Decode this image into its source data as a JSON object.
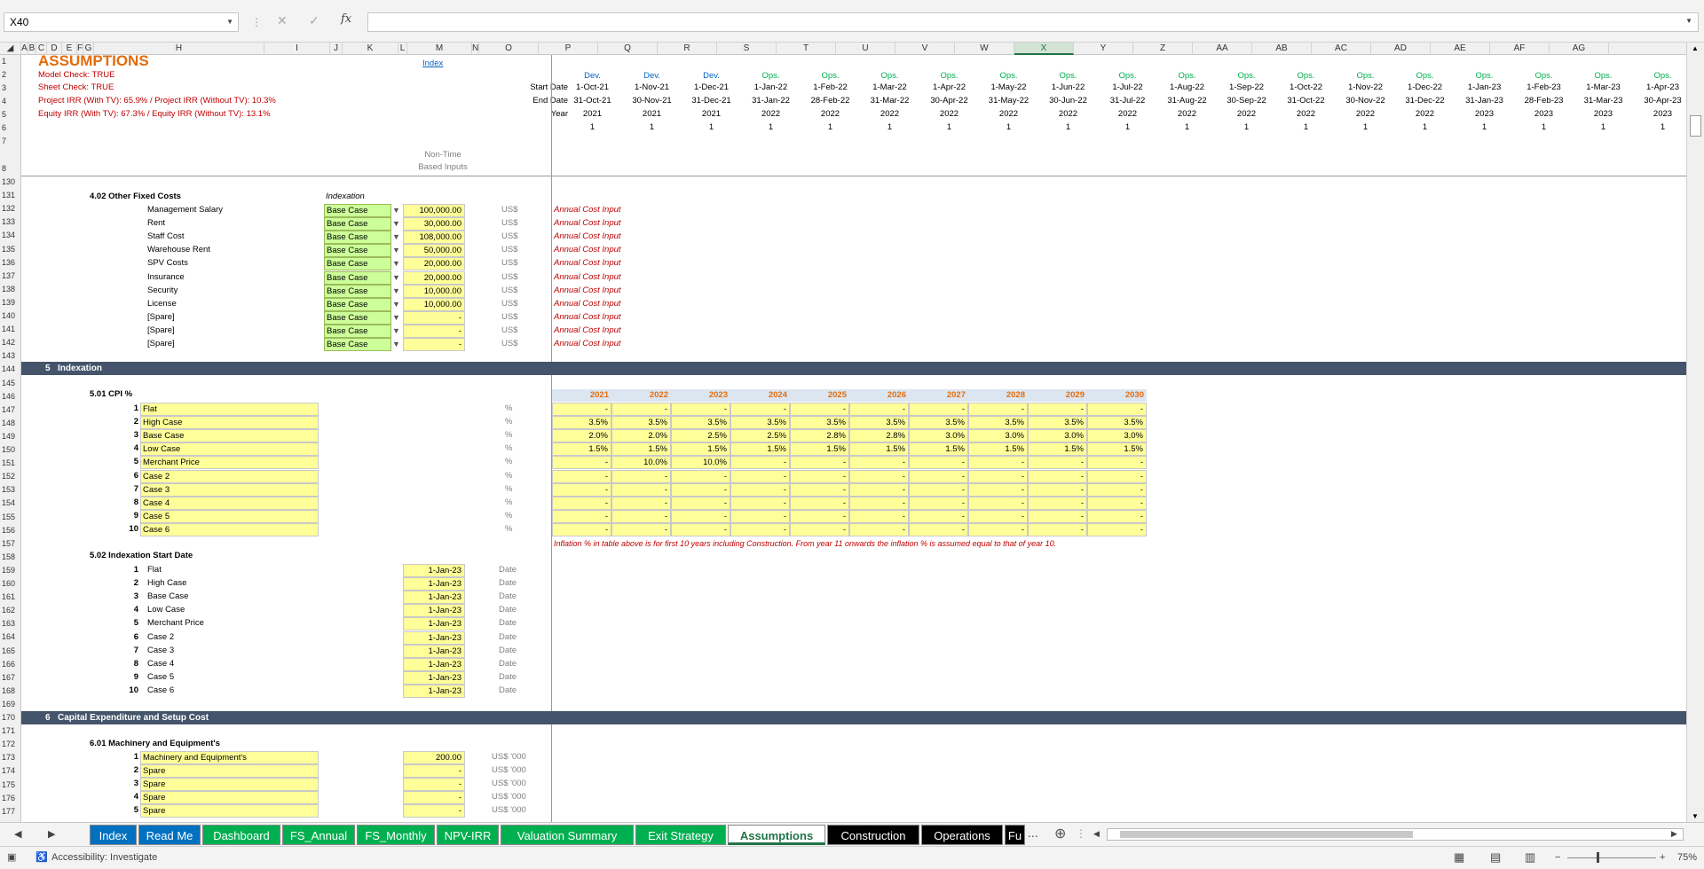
{
  "formula_bar": {
    "cell_ref": "X40",
    "fx_label": "fx",
    "cancel_glyph": "✕",
    "enter_glyph": "✓",
    "formula": ""
  },
  "columns": [
    "A",
    "B",
    "C",
    "D",
    "E",
    "F",
    "G",
    "H",
    "I",
    "J",
    "K",
    "L",
    "M",
    "N",
    "O",
    "P",
    "Q",
    "R",
    "S",
    "T",
    "U",
    "V",
    "W",
    "X",
    "Y",
    "Z",
    "AA",
    "AB",
    "AC",
    "AD",
    "AE",
    "AF",
    "AG"
  ],
  "selected_column": "X",
  "header": {
    "title": "ASSUMPTIONS",
    "index_link": "Index",
    "model_check": "Model Check: TRUE",
    "sheet_check": "Sheet Check: TRUE",
    "project_irr": "Project IRR (With TV): 65.9% / Project IRR (Without TV): 10.3%",
    "equity_irr": "Equity IRR (With TV): 67.3% / Equity IRR (Without TV): 13.1%",
    "non_time_1": "Non-Time",
    "non_time_2": "Based Inputs",
    "start_date_label": "Start Date",
    "end_date_label": "End Date",
    "year_label": "Year"
  },
  "timeline": [
    {
      "phase": "Dev.",
      "start": "1-Oct-21",
      "end": "31-Oct-21",
      "year": "2021",
      "flag": "1"
    },
    {
      "phase": "Dev.",
      "start": "1-Nov-21",
      "end": "30-Nov-21",
      "year": "2021",
      "flag": "1"
    },
    {
      "phase": "Dev.",
      "start": "1-Dec-21",
      "end": "31-Dec-21",
      "year": "2021",
      "flag": "1"
    },
    {
      "phase": "Ops.",
      "start": "1-Jan-22",
      "end": "31-Jan-22",
      "year": "2022",
      "flag": "1"
    },
    {
      "phase": "Ops.",
      "start": "1-Feb-22",
      "end": "28-Feb-22",
      "year": "2022",
      "flag": "1"
    },
    {
      "phase": "Ops.",
      "start": "1-Mar-22",
      "end": "31-Mar-22",
      "year": "2022",
      "flag": "1"
    },
    {
      "phase": "Ops.",
      "start": "1-Apr-22",
      "end": "30-Apr-22",
      "year": "2022",
      "flag": "1"
    },
    {
      "phase": "Ops.",
      "start": "1-May-22",
      "end": "31-May-22",
      "year": "2022",
      "flag": "1"
    },
    {
      "phase": "Ops.",
      "start": "1-Jun-22",
      "end": "30-Jun-22",
      "year": "2022",
      "flag": "1"
    },
    {
      "phase": "Ops.",
      "start": "1-Jul-22",
      "end": "31-Jul-22",
      "year": "2022",
      "flag": "1"
    },
    {
      "phase": "Ops.",
      "start": "1-Aug-22",
      "end": "31-Aug-22",
      "year": "2022",
      "flag": "1"
    },
    {
      "phase": "Ops.",
      "start": "1-Sep-22",
      "end": "30-Sep-22",
      "year": "2022",
      "flag": "1"
    },
    {
      "phase": "Ops.",
      "start": "1-Oct-22",
      "end": "31-Oct-22",
      "year": "2022",
      "flag": "1"
    },
    {
      "phase": "Ops.",
      "start": "1-Nov-22",
      "end": "30-Nov-22",
      "year": "2022",
      "flag": "1"
    },
    {
      "phase": "Ops.",
      "start": "1-Dec-22",
      "end": "31-Dec-22",
      "year": "2022",
      "flag": "1"
    },
    {
      "phase": "Ops.",
      "start": "1-Jan-23",
      "end": "31-Jan-23",
      "year": "2023",
      "flag": "1"
    },
    {
      "phase": "Ops.",
      "start": "1-Feb-23",
      "end": "28-Feb-23",
      "year": "2023",
      "flag": "1"
    },
    {
      "phase": "Ops.",
      "start": "1-Mar-23",
      "end": "31-Mar-23",
      "year": "2023",
      "flag": "1"
    },
    {
      "phase": "Ops.",
      "start": "1-Apr-23",
      "end": "30-Apr-23",
      "year": "2023",
      "flag": "1"
    }
  ],
  "fixed_costs": {
    "heading": "4.02  Other Fixed Costs",
    "indexation_label": "Indexation",
    "rows": [
      {
        "name": "Management Salary",
        "index": "Base Case",
        "value": "100,000.00",
        "unit": "US$",
        "note": "Annual Cost Input"
      },
      {
        "name": "Rent",
        "index": "Base Case",
        "value": "30,000.00",
        "unit": "US$",
        "note": "Annual Cost Input"
      },
      {
        "name": "Staff Cost",
        "index": "Base Case",
        "value": "108,000.00",
        "unit": "US$",
        "note": "Annual Cost Input"
      },
      {
        "name": "Warehouse Rent",
        "index": "Base Case",
        "value": "50,000.00",
        "unit": "US$",
        "note": "Annual Cost Input"
      },
      {
        "name": "SPV Costs",
        "index": "Base Case",
        "value": "20,000.00",
        "unit": "US$",
        "note": "Annual Cost Input"
      },
      {
        "name": "Insurance",
        "index": "Base Case",
        "value": "20,000.00",
        "unit": "US$",
        "note": "Annual Cost Input"
      },
      {
        "name": "Security",
        "index": "Base Case",
        "value": "10,000.00",
        "unit": "US$",
        "note": "Annual Cost Input"
      },
      {
        "name": "License",
        "index": "Base Case",
        "value": "10,000.00",
        "unit": "US$",
        "note": "Annual Cost Input"
      },
      {
        "name": "[Spare]",
        "index": "Base Case",
        "value": "-",
        "unit": "US$",
        "note": "Annual Cost Input"
      },
      {
        "name": "[Spare]",
        "index": "Base Case",
        "value": "-",
        "unit": "US$",
        "note": "Annual Cost Input"
      },
      {
        "name": "[Spare]",
        "index": "Base Case",
        "value": "-",
        "unit": "US$",
        "note": "Annual Cost Input"
      }
    ]
  },
  "section5": {
    "num": "5",
    "title": "Indexation"
  },
  "cpi": {
    "heading": "5.01  CPI %",
    "years": [
      "2021",
      "2022",
      "2023",
      "2024",
      "2025",
      "2026",
      "2027",
      "2028",
      "2029",
      "2030"
    ],
    "unit": "%",
    "rows": [
      {
        "n": "1",
        "name": "Flat",
        "vals": [
          "-",
          "-",
          "-",
          "-",
          "-",
          "-",
          "-",
          "-",
          "-",
          "-"
        ]
      },
      {
        "n": "2",
        "name": "High Case",
        "vals": [
          "3.5%",
          "3.5%",
          "3.5%",
          "3.5%",
          "3.5%",
          "3.5%",
          "3.5%",
          "3.5%",
          "3.5%",
          "3.5%"
        ]
      },
      {
        "n": "3",
        "name": "Base Case",
        "vals": [
          "2.0%",
          "2.0%",
          "2.5%",
          "2.5%",
          "2.8%",
          "2.8%",
          "3.0%",
          "3.0%",
          "3.0%",
          "3.0%"
        ]
      },
      {
        "n": "4",
        "name": "Low Case",
        "vals": [
          "1.5%",
          "1.5%",
          "1.5%",
          "1.5%",
          "1.5%",
          "1.5%",
          "1.5%",
          "1.5%",
          "1.5%",
          "1.5%"
        ]
      },
      {
        "n": "5",
        "name": "Merchant Price",
        "vals": [
          "-",
          "10.0%",
          "10.0%",
          "-",
          "-",
          "-",
          "-",
          "-",
          "-",
          "-"
        ]
      },
      {
        "n": "6",
        "name": "Case 2",
        "vals": [
          "-",
          "-",
          "-",
          "-",
          "-",
          "-",
          "-",
          "-",
          "-",
          "-"
        ]
      },
      {
        "n": "7",
        "name": "Case 3",
        "vals": [
          "-",
          "-",
          "-",
          "-",
          "-",
          "-",
          "-",
          "-",
          "-",
          "-"
        ]
      },
      {
        "n": "8",
        "name": "Case 4",
        "vals": [
          "-",
          "-",
          "-",
          "-",
          "-",
          "-",
          "-",
          "-",
          "-",
          "-"
        ]
      },
      {
        "n": "9",
        "name": "Case 5",
        "vals": [
          "-",
          "-",
          "-",
          "-",
          "-",
          "-",
          "-",
          "-",
          "-",
          "-"
        ]
      },
      {
        "n": "10",
        "name": "Case 6",
        "vals": [
          "-",
          "-",
          "-",
          "-",
          "-",
          "-",
          "-",
          "-",
          "-",
          "-"
        ]
      }
    ],
    "note": "Inflation % in table above is for first 10 years including Construction. From year 11 onwards the inflation % is assumed equal to that of year 10."
  },
  "index_start": {
    "heading": "5.02  Indexation Start Date",
    "unit": "Date",
    "rows": [
      {
        "n": "1",
        "name": "Flat",
        "date": "1-Jan-23"
      },
      {
        "n": "2",
        "name": "High Case",
        "date": "1-Jan-23"
      },
      {
        "n": "3",
        "name": "Base Case",
        "date": "1-Jan-23"
      },
      {
        "n": "4",
        "name": "Low Case",
        "date": "1-Jan-23"
      },
      {
        "n": "5",
        "name": "Merchant Price",
        "date": "1-Jan-23"
      },
      {
        "n": "6",
        "name": "Case 2",
        "date": "1-Jan-23"
      },
      {
        "n": "7",
        "name": "Case 3",
        "date": "1-Jan-23"
      },
      {
        "n": "8",
        "name": "Case 4",
        "date": "1-Jan-23"
      },
      {
        "n": "9",
        "name": "Case 5",
        "date": "1-Jan-23"
      },
      {
        "n": "10",
        "name": "Case 6",
        "date": "1-Jan-23"
      }
    ]
  },
  "section6": {
    "num": "6",
    "title": "Capital Expenditure and Setup Cost"
  },
  "capex": {
    "heading": "6.01  Machinery and Equipment's",
    "unit": "US$ '000",
    "rows": [
      {
        "n": "1",
        "name": "Machinery and Equipment's",
        "value": "200.00"
      },
      {
        "n": "2",
        "name": "Spare",
        "value": "-"
      },
      {
        "n": "3",
        "name": "Spare",
        "value": "-"
      },
      {
        "n": "4",
        "name": "Spare",
        "value": "-"
      },
      {
        "n": "5",
        "name": "Spare",
        "value": "-"
      }
    ]
  },
  "row_numbers": [
    "1",
    "2",
    "3",
    "4",
    "5",
    "6",
    "7",
    "8",
    "130",
    "131",
    "132",
    "133",
    "134",
    "135",
    "136",
    "137",
    "138",
    "139",
    "140",
    "141",
    "142",
    "143",
    "144",
    "145",
    "146",
    "147",
    "148",
    "149",
    "150",
    "151",
    "152",
    "153",
    "154",
    "155",
    "156",
    "157",
    "158",
    "159",
    "160",
    "161",
    "162",
    "163",
    "164",
    "165",
    "166",
    "167",
    "168",
    "169",
    "170",
    "171",
    "172",
    "173",
    "174",
    "175",
    "176",
    "177"
  ],
  "tabs": [
    {
      "label": "Index",
      "bg": "#0070c0"
    },
    {
      "label": "Read Me",
      "bg": "#0070c0"
    },
    {
      "label": "Dashboard",
      "bg": "#00b050"
    },
    {
      "label": "FS_Annual",
      "bg": "#00b050"
    },
    {
      "label": "FS_Monthly",
      "bg": "#00b050"
    },
    {
      "label": "NPV-IRR",
      "bg": "#00b050"
    },
    {
      "label": "Valuation Summary",
      "bg": "#00b050"
    },
    {
      "label": "Exit Strategy",
      "bg": "#00b050"
    },
    {
      "label": "Assumptions",
      "bg": "#ffffff",
      "active": true
    },
    {
      "label": "Construction",
      "bg": "#000000"
    },
    {
      "label": "Operations",
      "bg": "#000000"
    },
    {
      "label": "Fu",
      "bg": "#000000"
    }
  ],
  "tab_more": "...",
  "status": {
    "accessibility": "Accessibility: Investigate",
    "zoom": "75%"
  }
}
